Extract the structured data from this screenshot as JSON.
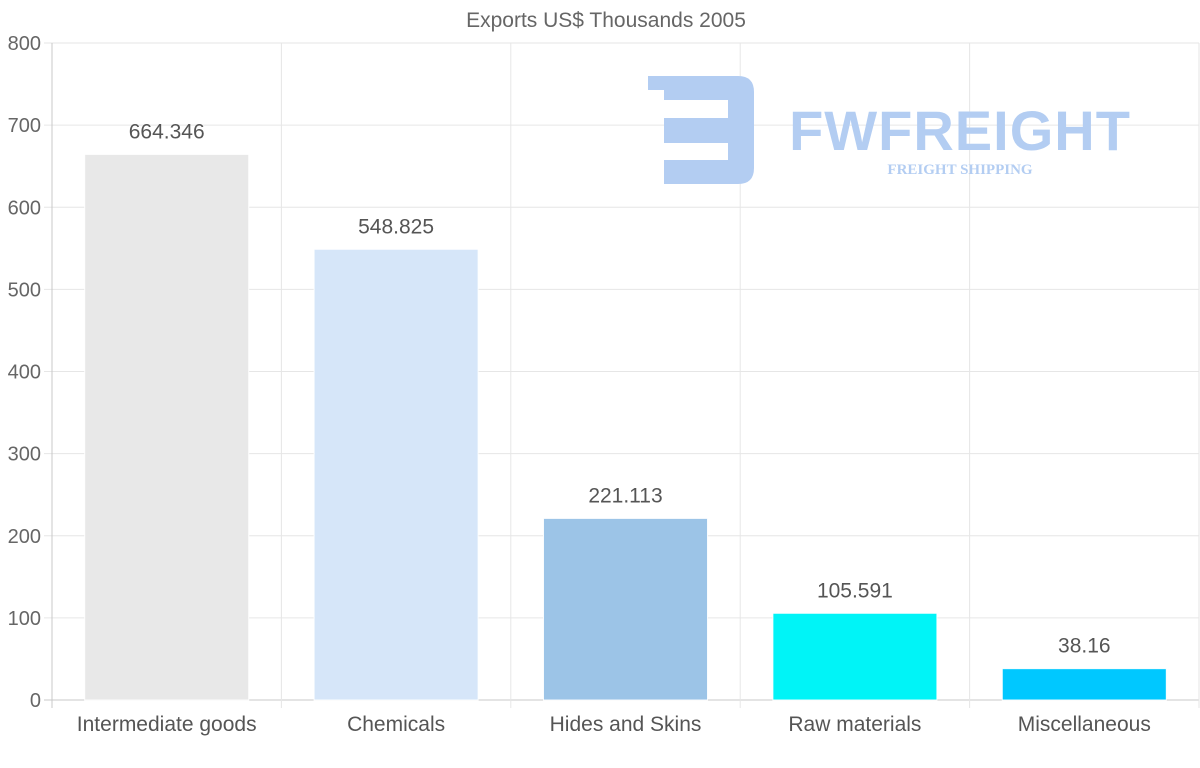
{
  "chart_data": {
    "type": "bar",
    "title": "Exports US$ Thousands 2005",
    "xlabel": "",
    "ylabel": "",
    "categories": [
      "Intermediate goods",
      "Chemicals",
      "Hides and Skins",
      "Raw materials",
      "Miscellaneous"
    ],
    "values": [
      664.346,
      548.825,
      221.113,
      105.591,
      38.16
    ],
    "value_labels": [
      "664.346",
      "548.825",
      "221.113",
      "105.591",
      "38.16"
    ],
    "bar_colors": [
      "#e8e8e8",
      "#d6e6f9",
      "#9cc4e7",
      "#00f4f7",
      "#00c8ff"
    ],
    "ylim": [
      0,
      800
    ],
    "yticks": [
      0,
      100,
      200,
      300,
      400,
      500,
      600,
      700,
      800
    ],
    "grid": true,
    "legend": "none"
  },
  "watermark": {
    "brand": "FWFREIGHT",
    "tagline": "FREIGHT SHIPPING",
    "color": "#b3cdf2"
  }
}
